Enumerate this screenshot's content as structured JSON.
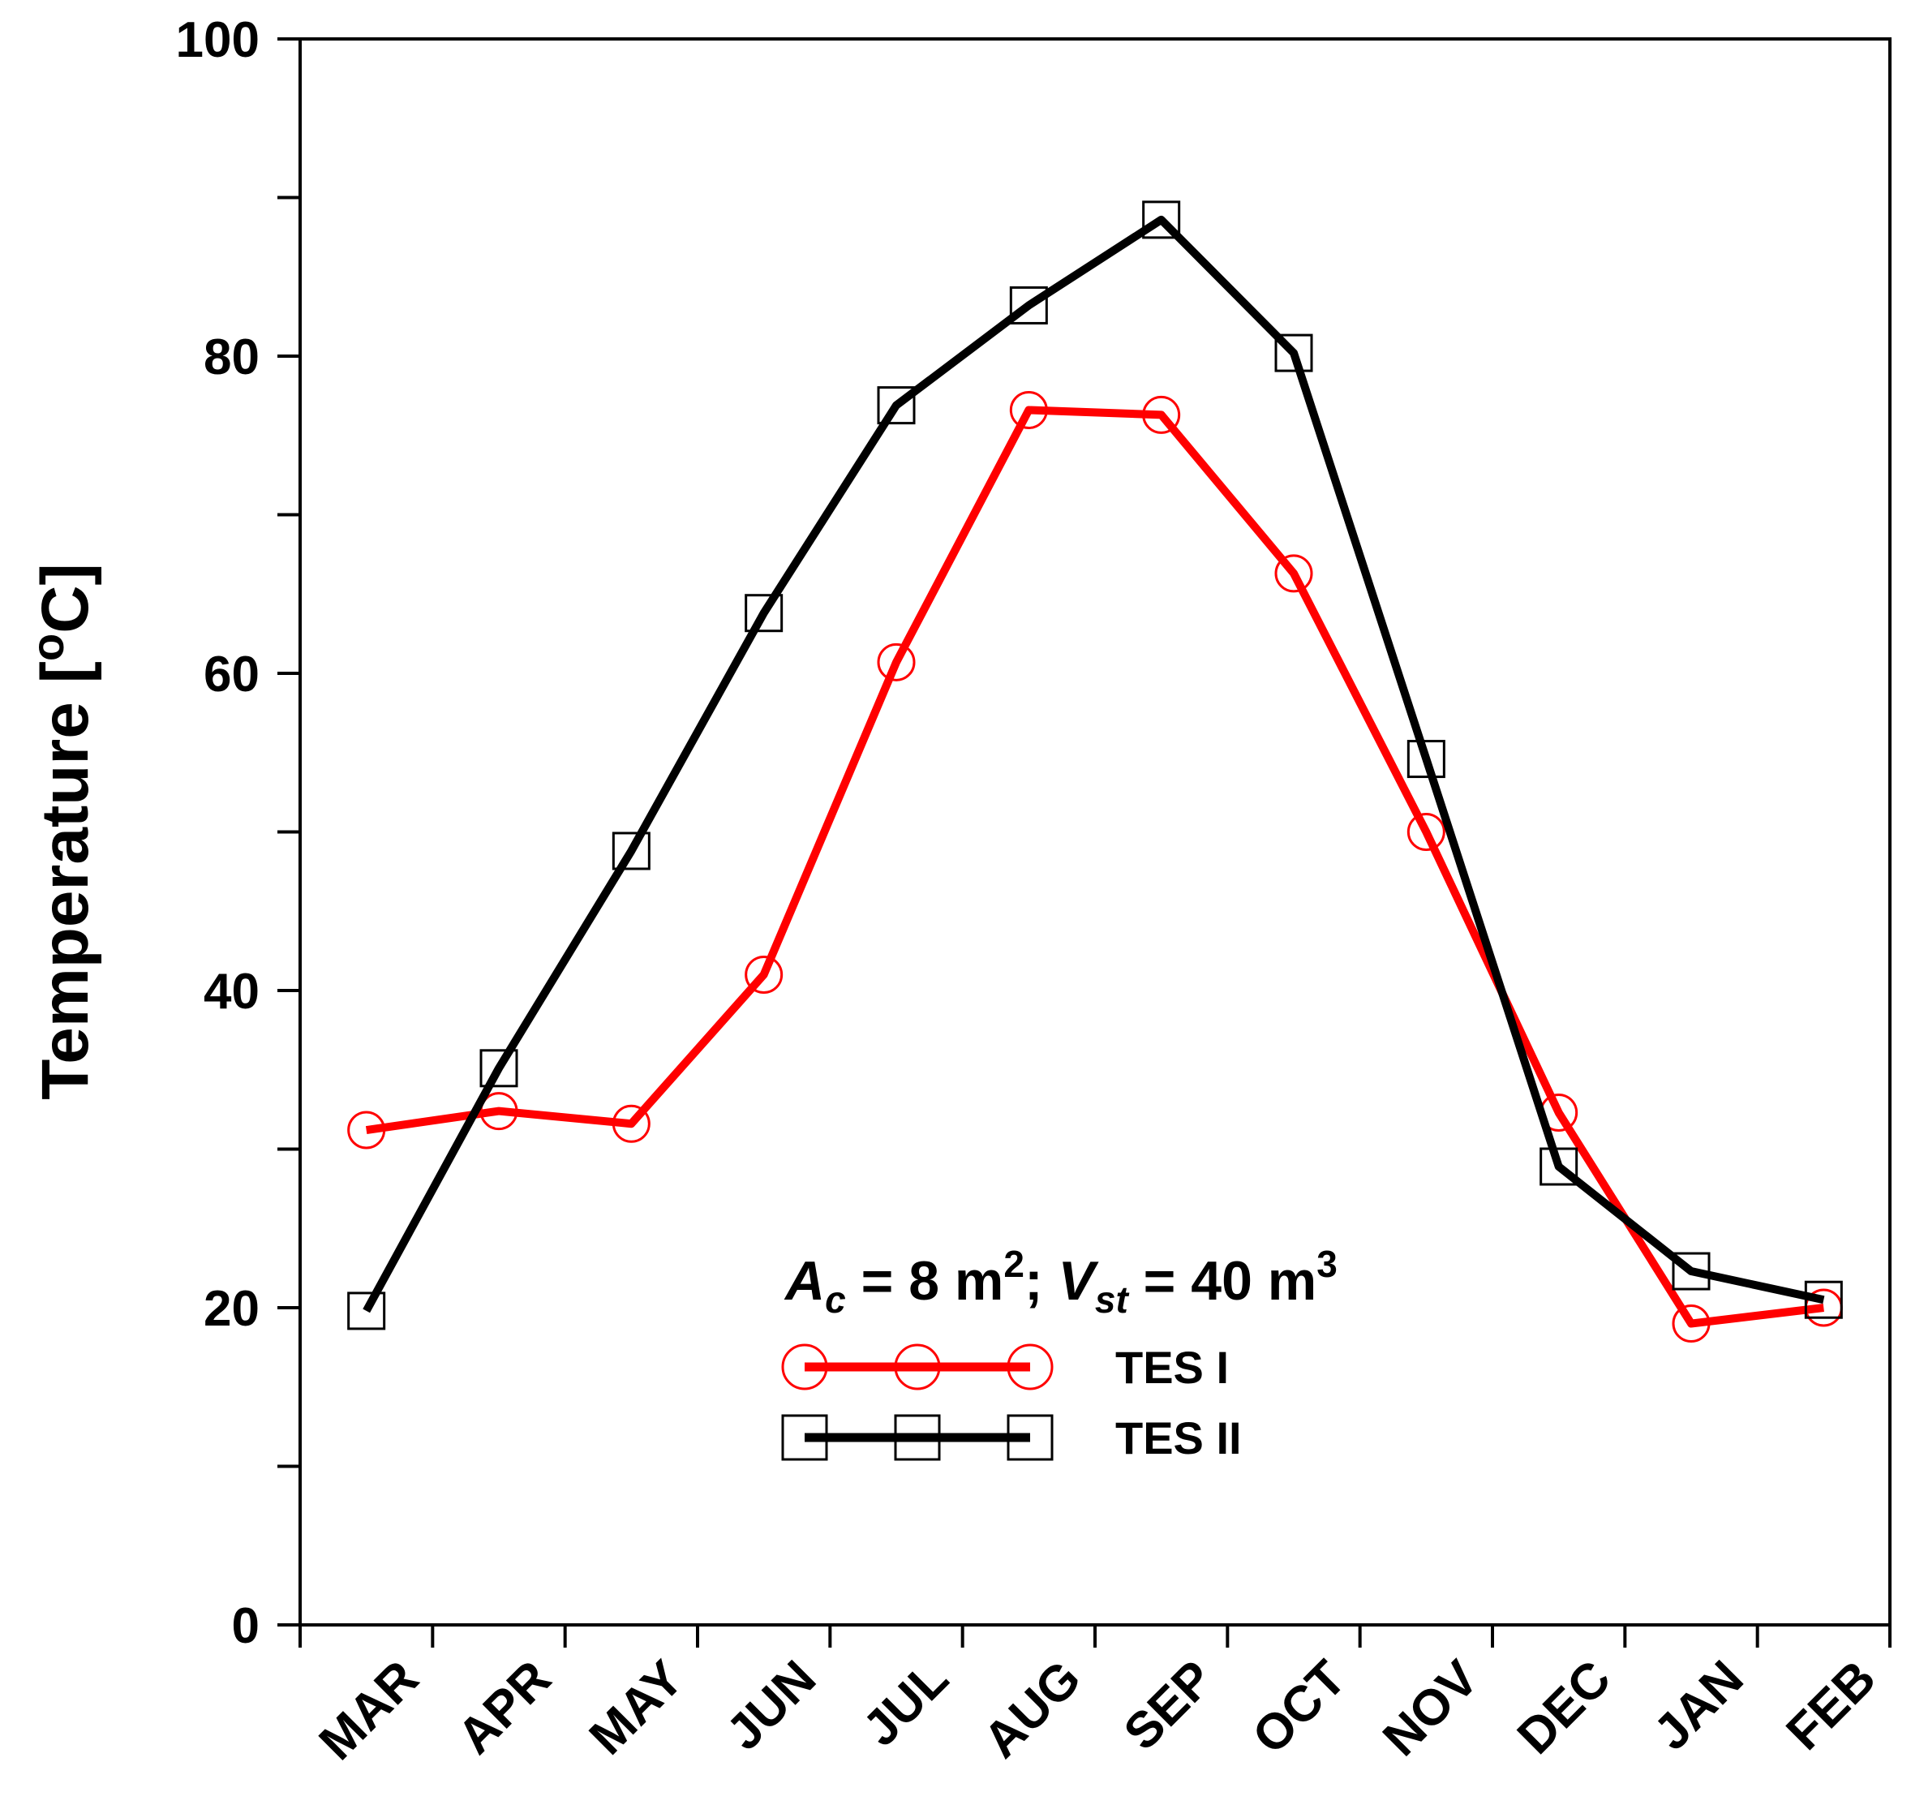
{
  "chart_data": {
    "type": "line",
    "title": "",
    "xlabel": "",
    "ylabel_main": "Temperature [",
    "ylabel_sup": "o",
    "ylabel_tail": "C]",
    "categories": [
      "MAR",
      "APR",
      "MAY",
      "JUN",
      "JUL",
      "AUG",
      "SEP",
      "OCT",
      "NOV",
      "DEC",
      "JAN",
      "FEB"
    ],
    "ylim": [
      0,
      100
    ],
    "yticks": [
      0,
      20,
      40,
      60,
      80,
      100
    ],
    "yticks_minor": [
      10,
      30,
      50,
      70,
      90
    ],
    "grid": false,
    "series": [
      {
        "name": "TES I",
        "color": "#ff0000",
        "marker": "circle",
        "values": [
          31.2,
          32.4,
          31.6,
          41.0,
          60.7,
          76.6,
          76.3,
          66.3,
          50.0,
          32.3,
          19.0,
          20.0
        ]
      },
      {
        "name": "TES II",
        "color": "#000000",
        "marker": "square",
        "values": [
          19.8,
          35.1,
          48.8,
          63.8,
          76.9,
          83.2,
          88.6,
          80.2,
          54.6,
          28.9,
          22.3,
          20.5
        ]
      }
    ],
    "annotation": {
      "a": "A",
      "a_sub": "c",
      "a_rest": " = 8 m",
      "a_sup": "2",
      "sep": "; ",
      "v": "V",
      "v_sub": "st",
      "v_rest": " = 40 m",
      "v_sup": "3"
    },
    "legend_position": "bottom-center"
  }
}
